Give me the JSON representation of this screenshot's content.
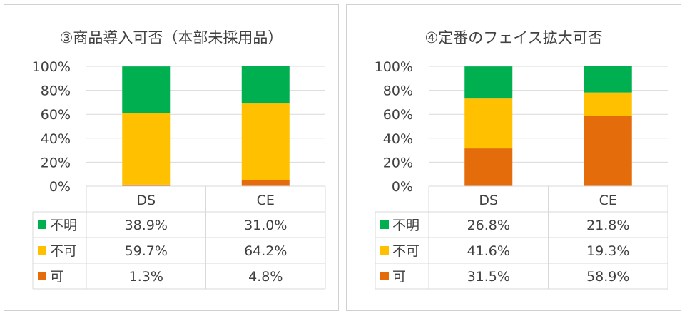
{
  "chart_data": [
    {
      "type": "stacked-bar-with-data-table",
      "title": "③商品導入可否（本部未採用品）",
      "categories": [
        "DS",
        "CE"
      ],
      "y_ticks": [
        "0%",
        "20%",
        "40%",
        "60%",
        "80%",
        "100%"
      ],
      "ylim": [
        0,
        100
      ],
      "grid": true,
      "series": [
        {
          "name": "不明",
          "color": "#00b050",
          "values": [
            38.9,
            31.0
          ],
          "labels": [
            "38.9%",
            "31.0%"
          ]
        },
        {
          "name": "不可",
          "color": "#ffc000",
          "values": [
            59.7,
            64.2
          ],
          "labels": [
            "59.7%",
            "64.2%"
          ]
        },
        {
          "name": "可",
          "color": "#e46c0a",
          "values": [
            1.3,
            4.8
          ],
          "labels": [
            "1.3%",
            "4.8%"
          ]
        }
      ]
    },
    {
      "type": "stacked-bar-with-data-table",
      "title": "④定番のフェイス拡大可否",
      "categories": [
        "DS",
        "CE"
      ],
      "y_ticks": [
        "0%",
        "20%",
        "40%",
        "60%",
        "80%",
        "100%"
      ],
      "ylim": [
        0,
        100
      ],
      "grid": true,
      "series": [
        {
          "name": "不明",
          "color": "#00b050",
          "values": [
            26.8,
            21.8
          ],
          "labels": [
            "26.8%",
            "21.8%"
          ]
        },
        {
          "name": "不可",
          "color": "#ffc000",
          "values": [
            41.6,
            19.3
          ],
          "labels": [
            "41.6%",
            "19.3%"
          ]
        },
        {
          "name": "可",
          "color": "#e46c0a",
          "values": [
            31.5,
            58.9
          ],
          "labels": [
            "31.5%",
            "58.9%"
          ]
        }
      ]
    }
  ]
}
